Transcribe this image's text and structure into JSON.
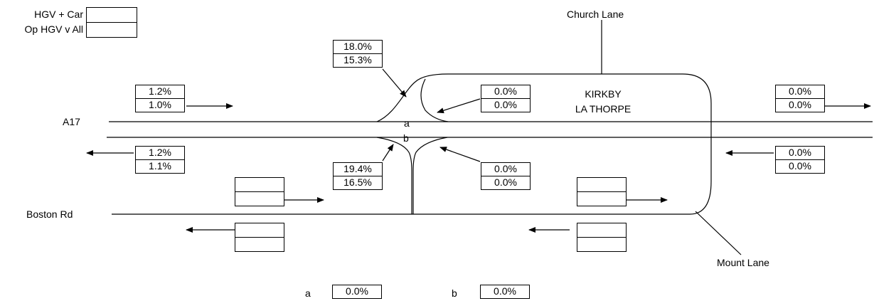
{
  "legend": {
    "row1": "HGV + Car",
    "row2": "Op HGV v All"
  },
  "roads": {
    "church_lane": "Church Lane",
    "a17": "A17",
    "boston_rd": "Boston Rd",
    "mount_lane": "Mount Lane",
    "kirkby_line1": "KIRKBY",
    "kirkby_line2": "LA THORPE"
  },
  "junction_points": {
    "a": "a",
    "b": "b"
  },
  "boxes": {
    "a17_west_east": {
      "top": "1.2%",
      "bottom": "1.0%"
    },
    "a17_west_west": {
      "top": "1.2%",
      "bottom": "1.1%"
    },
    "slip_top": {
      "top": "18.0%",
      "bottom": "15.3%"
    },
    "slip_bottom": {
      "top": "19.4%",
      "bottom": "16.5%"
    },
    "kirkby_in": {
      "top": "0.0%",
      "bottom": "0.0%"
    },
    "kirkby_out": {
      "top": "0.0%",
      "bottom": "0.0%"
    },
    "a17_east_east": {
      "top": "0.0%",
      "bottom": "0.0%"
    },
    "a17_east_west": {
      "top": "0.0%",
      "bottom": "0.0%"
    },
    "boston_w_east": {
      "top": "",
      "bottom": ""
    },
    "boston_w_west": {
      "top": "",
      "bottom": ""
    },
    "boston_e_east": {
      "top": "",
      "bottom": ""
    },
    "boston_e_west": {
      "top": "",
      "bottom": ""
    }
  },
  "footer": {
    "a_label": "a",
    "a_value": "0.0%",
    "b_label": "b",
    "b_value": "0.0%"
  }
}
